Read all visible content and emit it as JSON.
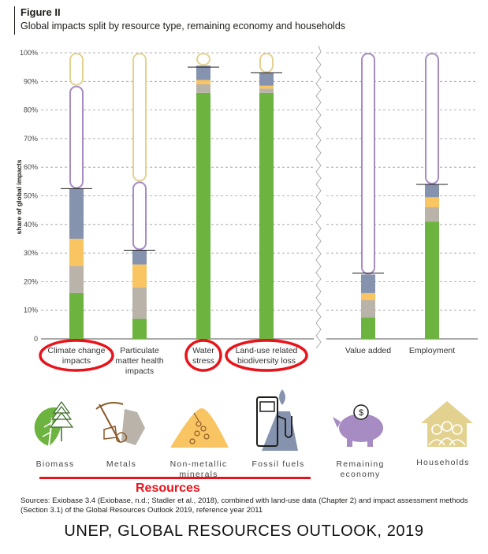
{
  "figure": {
    "title": "Figure II",
    "subtitle": "Global impacts split by resource type, remaining economy and households"
  },
  "chart_data": {
    "type": "bar",
    "stacked": true,
    "ylabel": "share of global impacts",
    "ylim": [
      0,
      100
    ],
    "yticks": [
      "0",
      "10%",
      "20%",
      "30%",
      "40%",
      "50%",
      "60%",
      "70%",
      "80%",
      "90%",
      "100%"
    ],
    "categories": [
      "Climate change impacts",
      "Particulate matter health impacts",
      "Water stress",
      "Land-use related biodiversity loss",
      "Value added",
      "Employment"
    ],
    "category_label_lines": [
      [
        "Climate change",
        "impacts"
      ],
      [
        "Particulate",
        "matter health",
        "impacts"
      ],
      [
        "Water",
        "stress"
      ],
      [
        "Land-use related",
        "biodiversity loss"
      ],
      [
        "Value added"
      ],
      [
        "Employment"
      ]
    ],
    "series": [
      {
        "name": "Biomass",
        "color": "#6db33f",
        "values": [
          16,
          7,
          86,
          86,
          7.5,
          41
        ]
      },
      {
        "name": "Metals",
        "color": "#b9b3aa",
        "values": [
          9.5,
          11,
          3,
          1.5,
          6,
          5
        ]
      },
      {
        "name": "Non-metallic minerals",
        "color": "#f9c462",
        "values": [
          9.5,
          8,
          1.5,
          1,
          2.5,
          3.5
        ]
      },
      {
        "name": "Fossil fuels",
        "color": "#8693ae",
        "values": [
          17.5,
          5,
          5,
          4.5,
          6.5,
          4.5
        ]
      },
      {
        "name": "Remaining economy",
        "color": "#a78bc3",
        "outline": true,
        "values": [
          36,
          24,
          0,
          0,
          77.5,
          46
        ]
      },
      {
        "name": "Households",
        "color": "#e3d28f",
        "outline": true,
        "values": [
          11.5,
          45,
          4.5,
          7,
          0,
          0
        ]
      }
    ],
    "resource_totals": [
      52.5,
      31,
      95,
      93,
      23,
      54
    ],
    "grid": true
  },
  "icons": [
    {
      "key": "biomass",
      "label": "Biomass",
      "icon": "tree-leaf-icon"
    },
    {
      "key": "metals",
      "label": "Metals",
      "icon": "pickaxe-icon"
    },
    {
      "key": "minerals",
      "label_lines": [
        "Non-metallic",
        "minerals"
      ],
      "icon": "sand-pile-icon"
    },
    {
      "key": "fossil",
      "label": "Fossil fuels",
      "icon": "fuel-pump-icon"
    },
    {
      "key": "economy",
      "label_lines": [
        "Remaining",
        "economy"
      ],
      "icon": "piggy-bank-icon"
    },
    {
      "key": "households",
      "label": "Households",
      "icon": "house-people-icon"
    }
  ],
  "annotation": {
    "label": "Resources",
    "color": "#e8141c"
  },
  "sources": "Sources: Exiobase 3.4 (Exiobase, n.d.; Stadler et al., 2018), combined with land-use data (Chapter 2) and impact assessment methods (Section 3.1) of the Global Resources Outlook 2019, reference year 2011",
  "footer": "UNEP, GLOBAL RESOURCES OUTLOOK, 2019"
}
